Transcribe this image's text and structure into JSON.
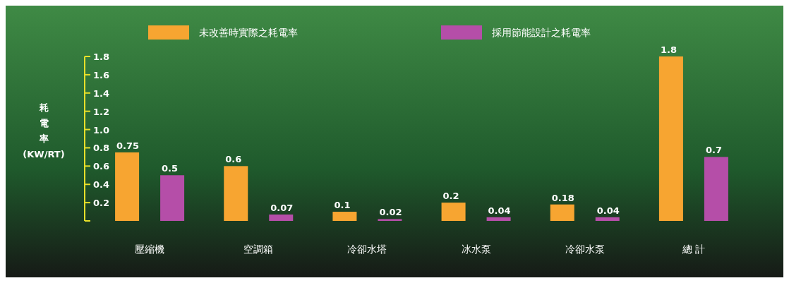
{
  "chart_data": {
    "type": "bar",
    "categories": [
      "壓縮機",
      "空調箱",
      "冷卻水塔",
      "冰水泵",
      "冷卻水泵",
      "總 計"
    ],
    "ylabel": "耗電率(KW/RT)",
    "series": [
      {
        "name": "未改善時實際之耗電率",
        "color": "#f7a531",
        "values": [
          0.75,
          0.6,
          0.1,
          0.2,
          0.18,
          1.8
        ]
      },
      {
        "name": "採用節能設計之耗電率",
        "color": "#b54ea8",
        "values": [
          0.5,
          0.07,
          0.02,
          0.04,
          0.04,
          0.7
        ]
      }
    ],
    "ylim": [
      0,
      1.8
    ],
    "yticks": [
      {
        "value": 0,
        "label": null
      },
      0.2,
      0.4,
      0.6,
      0.8,
      {
        "value": 1,
        "label": "1.0"
      },
      1.2,
      1.4,
      1.6,
      1.8
    ],
    "data_labels": true,
    "legend": "top",
    "grid": false
  }
}
